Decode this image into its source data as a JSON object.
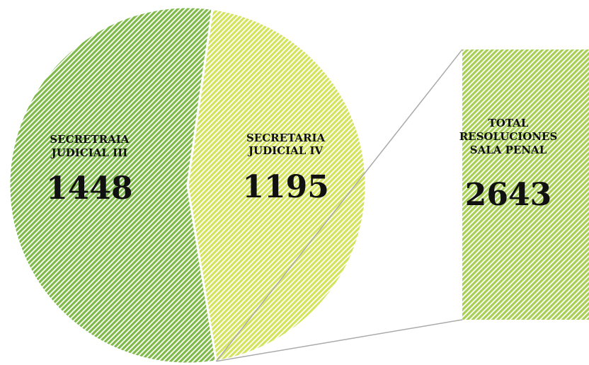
{
  "chart_data": {
    "type": "pie",
    "categories": [
      "SECRETRAIA JUDICIAL III",
      "SECRETARIA JUDICIAL IV"
    ],
    "values": [
      1448,
      1195
    ],
    "colors": [
      "#7fb94a",
      "#d3e35c"
    ],
    "total": {
      "label": "TOTAL RESOLUCIONES SALA PENAL",
      "value": 2643,
      "color": "#a8cf55"
    }
  }
}
